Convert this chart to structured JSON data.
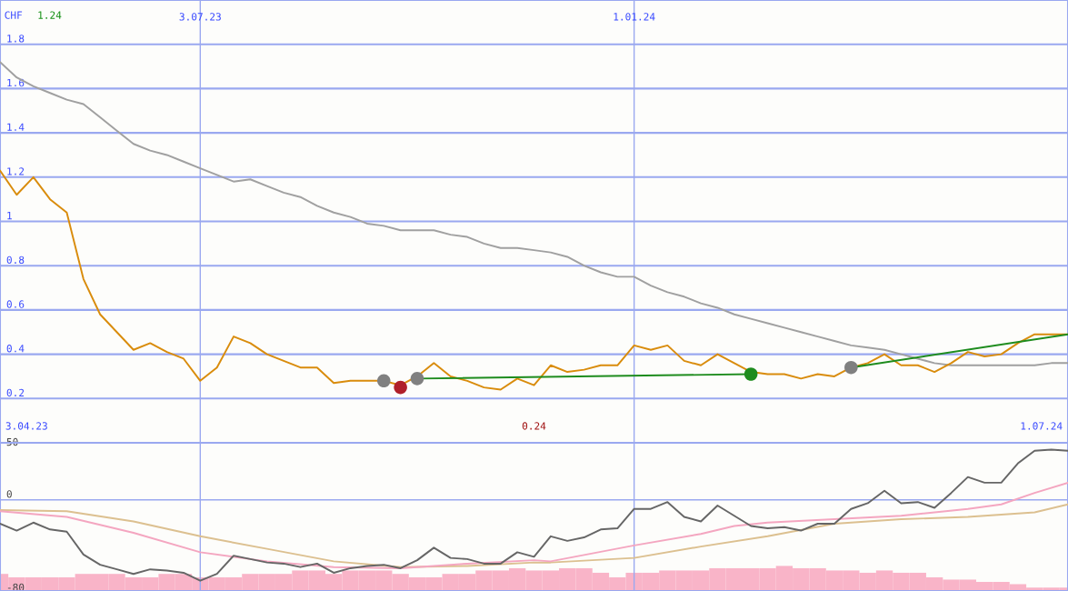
{
  "chart_data": [
    {
      "type": "line",
      "ylabel": "CHF",
      "annotations": [
        "1.24",
        "0.24",
        "3.04.23",
        "1.07.24"
      ],
      "x": [
        "2023-04-10",
        "2023-04-17",
        "2023-04-24",
        "2023-05-01",
        "2023-05-08",
        "2023-05-15",
        "2023-05-22",
        "2023-05-29",
        "2023-06-05",
        "2023-06-12",
        "2023-06-19",
        "2023-06-26",
        "2023-07-03",
        "2023-07-10",
        "2023-07-17",
        "2023-07-24",
        "2023-07-31",
        "2023-08-07",
        "2023-08-14",
        "2023-08-21",
        "2023-08-28",
        "2023-09-04",
        "2023-09-11",
        "2023-09-18",
        "2023-09-25",
        "2023-10-02",
        "2023-10-09",
        "2023-10-16",
        "2023-10-23",
        "2023-10-30",
        "2023-11-06",
        "2023-11-13",
        "2023-11-20",
        "2023-11-27",
        "2023-12-04",
        "2023-12-11",
        "2023-12-18",
        "2023-12-25",
        "2024-01-01",
        "2024-01-08",
        "2024-01-15",
        "2024-01-22",
        "2024-01-29",
        "2024-02-05",
        "2024-02-12",
        "2024-02-19",
        "2024-02-26",
        "2024-03-04",
        "2024-03-11",
        "2024-03-18",
        "2024-03-25",
        "2024-04-01",
        "2024-04-08",
        "2024-04-15",
        "2024-04-22",
        "2024-04-29",
        "2024-05-06",
        "2024-05-13",
        "2024-05-20",
        "2024-05-27",
        "2024-06-03",
        "2024-06-10",
        "2024-06-17",
        "2024-06-24",
        "2024-07-01"
      ],
      "series": [
        {
          "color": "#a0a0a0",
          "values": [
            1.72,
            1.65,
            1.61,
            1.58,
            1.55,
            1.53,
            1.47,
            1.41,
            1.35,
            1.32,
            1.3,
            1.27,
            1.24,
            1.21,
            1.18,
            1.19,
            1.16,
            1.13,
            1.11,
            1.07,
            1.04,
            1.02,
            0.99,
            0.98,
            0.96,
            0.96,
            0.96,
            0.94,
            0.93,
            0.9,
            0.88,
            0.88,
            0.87,
            0.86,
            0.84,
            0.8,
            0.77,
            0.75,
            0.75,
            0.71,
            0.68,
            0.66,
            0.63,
            0.61,
            0.58,
            0.56,
            0.54,
            0.52,
            0.5,
            0.48,
            0.46,
            0.44,
            0.43,
            0.42,
            0.4,
            0.38,
            0.36,
            0.35,
            0.35,
            0.35,
            0.35,
            0.35,
            0.35,
            0.36,
            0.36
          ]
        },
        {
          "color": "#d98c0c",
          "values": [
            1.23,
            1.12,
            1.2,
            1.1,
            1.04,
            0.74,
            0.58,
            0.5,
            0.42,
            0.45,
            0.41,
            0.38,
            0.28,
            0.34,
            0.48,
            0.45,
            0.4,
            0.37,
            0.34,
            0.34,
            0.27,
            0.28,
            0.28,
            0.28,
            0.26,
            0.3,
            0.36,
            0.3,
            0.28,
            0.25,
            0.24,
            0.29,
            0.26,
            0.35,
            0.32,
            0.33,
            0.35,
            0.35,
            0.44,
            0.42,
            0.44,
            0.37,
            0.35,
            0.4,
            0.36,
            0.32,
            0.31,
            0.31,
            0.29,
            0.31,
            0.3,
            0.34,
            0.36,
            0.4,
            0.35,
            0.35,
            0.32,
            0.36,
            0.41,
            0.39,
            0.4,
            0.45,
            0.49,
            0.49,
            0.49
          ]
        },
        {
          "type": "line",
          "color": "#1e8c1e",
          "x": [
            "2023-10-02",
            "2024-02-19"
          ],
          "values": [
            0.29,
            0.31
          ]
        },
        {
          "type": "line",
          "color": "#1e8c1e",
          "x": [
            "2024-04-01",
            "2024-07-01"
          ],
          "values": [
            0.34,
            0.49
          ]
        },
        {
          "type": "scatter",
          "x": [
            "2023-09-18",
            "2023-09-25",
            "2023-10-02",
            "2024-02-19",
            "2024-04-01"
          ],
          "values": [
            0.28,
            0.25,
            0.29,
            0.31,
            0.34
          ],
          "colors": [
            "#808080",
            "#b0202a",
            "#808080",
            "#1e8c1e",
            "#808080"
          ]
        }
      ],
      "xlim": [
        "2023-04-10",
        "2024-07-01"
      ],
      "xticks": [
        {
          "value": "2023-07-03",
          "label": "3.07.23"
        },
        {
          "value": "2024-01-01",
          "label": "1.01.24"
        }
      ],
      "ylim": [
        0,
        2.0
      ],
      "yticks": [
        0.2,
        0.4,
        0.6,
        0.8,
        1,
        1.2,
        1.4,
        1.6,
        1.8
      ],
      "grid": true
    },
    {
      "type": "line",
      "tick_labels": "y",
      "x": [
        "2023-04-10",
        "2023-04-17",
        "2023-04-24",
        "2023-05-01",
        "2023-05-08",
        "2023-05-15",
        "2023-05-22",
        "2023-05-29",
        "2023-06-05",
        "2023-06-12",
        "2023-06-19",
        "2023-06-26",
        "2023-07-03",
        "2023-07-10",
        "2023-07-17",
        "2023-07-24",
        "2023-07-31",
        "2023-08-07",
        "2023-08-14",
        "2023-08-21",
        "2023-08-28",
        "2023-09-04",
        "2023-09-11",
        "2023-09-18",
        "2023-09-25",
        "2023-10-02",
        "2023-10-09",
        "2023-10-16",
        "2023-10-23",
        "2023-10-30",
        "2023-11-06",
        "2023-11-13",
        "2023-11-20",
        "2023-11-27",
        "2023-12-04",
        "2023-12-11",
        "2023-12-18",
        "2023-12-25",
        "2024-01-01",
        "2024-01-08",
        "2024-01-15",
        "2024-01-22",
        "2024-01-29",
        "2024-02-05",
        "2024-02-12",
        "2024-02-19",
        "2024-02-26",
        "2024-03-04",
        "2024-03-11",
        "2024-03-18",
        "2024-03-25",
        "2024-04-01",
        "2024-04-08",
        "2024-04-15",
        "2024-04-22",
        "2024-04-29",
        "2024-05-06",
        "2024-05-13",
        "2024-05-20",
        "2024-05-27",
        "2024-06-03",
        "2024-06-10",
        "2024-06-17",
        "2024-06-24",
        "2024-07-01"
      ],
      "series": [
        {
          "type": "bar",
          "color": "#f9b4c8",
          "base": [
            -80,
            -80,
            -80,
            -80,
            -80,
            -80,
            -80,
            -80,
            -80,
            -80,
            -80,
            -80,
            -80,
            -80,
            -80,
            -80,
            -80,
            -80,
            -80,
            -80,
            -80,
            -80,
            -80,
            -80,
            -80,
            -80,
            -80,
            -80,
            -80,
            -80,
            -80,
            -80,
            -80,
            -80,
            -80,
            -80,
            -80,
            -80,
            -80,
            -80,
            -80,
            -80,
            -80,
            -80,
            -80,
            -80,
            -80,
            -80,
            -80,
            -80,
            -80,
            -80,
            -80,
            -80,
            -80,
            -80,
            -80,
            -80,
            -80,
            -80,
            -80,
            -80,
            -80,
            -80,
            -80
          ],
          "values": [
            15,
            12,
            12,
            12,
            12,
            15,
            15,
            15,
            12,
            12,
            15,
            15,
            12,
            12,
            12,
            15,
            15,
            15,
            18,
            18,
            15,
            18,
            18,
            18,
            15,
            12,
            12,
            15,
            15,
            18,
            18,
            20,
            18,
            18,
            20,
            20,
            16,
            12,
            16,
            16,
            18,
            18,
            18,
            20,
            20,
            20,
            20,
            22,
            20,
            20,
            18,
            18,
            16,
            18,
            16,
            16,
            12,
            10,
            10,
            8,
            8,
            6,
            3,
            3,
            3
          ]
        },
        {
          "type": "line",
          "color": "#dcc090",
          "x": [
            "2023-04-10",
            "2023-05-08",
            "2023-06-05",
            "2023-07-03",
            "2023-07-31",
            "2023-08-28",
            "2023-09-25",
            "2023-10-23",
            "2023-11-20",
            "2023-11-27",
            "2024-01-01",
            "2024-01-29",
            "2024-02-26",
            "2024-03-25",
            "2024-04-22",
            "2024-05-20",
            "2024-06-17",
            "2024-07-01"
          ],
          "values": [
            -9,
            -10,
            -19,
            -32,
            -43,
            -54,
            -59,
            -58,
            -55,
            -55,
            -51,
            -41,
            -32,
            -21,
            -17,
            -15,
            -11,
            -4
          ]
        },
        {
          "type": "line",
          "color": "#f4a6c0",
          "x": [
            "2023-04-10",
            "2023-05-08",
            "2023-06-05",
            "2023-07-03",
            "2023-07-31",
            "2023-08-28",
            "2023-09-25",
            "2023-10-23",
            "2023-11-20",
            "2023-11-27",
            "2024-01-01",
            "2024-01-29",
            "2024-02-12",
            "2024-02-26",
            "2024-03-25",
            "2024-04-22",
            "2024-05-20",
            "2024-06-03",
            "2024-06-17",
            "2024-07-01"
          ],
          "values": [
            -10,
            -15,
            -29,
            -46,
            -54,
            -59,
            -60,
            -56,
            -53,
            -54,
            -40,
            -30,
            -23,
            -20,
            -17,
            -14,
            -8,
            -4,
            6,
            15
          ]
        },
        {
          "color": "#666666",
          "values": [
            -21,
            -27,
            -20,
            -26,
            -28,
            -48,
            -57,
            -61,
            -65,
            -61,
            -62,
            -64,
            -71,
            -65,
            -49,
            -52,
            -55,
            -56,
            -59,
            -56,
            -64,
            -60,
            -58,
            -57,
            -60,
            -53,
            -42,
            -51,
            -52,
            -56,
            -56,
            -46,
            -50,
            -32,
            -36,
            -33,
            -26,
            -25,
            -8,
            -8,
            -2,
            -15,
            -19,
            -5,
            -14,
            -23,
            -25,
            -24,
            -27,
            -21,
            -21,
            -8,
            -3,
            8,
            -3,
            -2,
            -7,
            6,
            20,
            15,
            15,
            32,
            43,
            44,
            43
          ]
        }
      ],
      "xlim": [
        "2023-04-10",
        "2024-07-01"
      ],
      "xticks": [
        {
          "value": "2023-07-03",
          "label": null
        },
        {
          "value": "2024-01-01",
          "label": null
        }
      ],
      "ylim": [
        -80,
        50
      ],
      "yticks": [
        -80,
        0,
        50
      ],
      "grid": true
    }
  ]
}
